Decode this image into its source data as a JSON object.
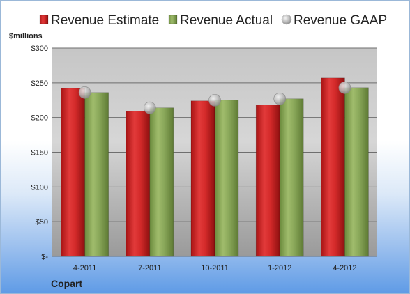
{
  "chart_data": {
    "type": "bar",
    "company": "Copart",
    "unit_label": "$millions",
    "categories": [
      "4-2011",
      "7-2011",
      "10-2011",
      "1-2012",
      "4-2012"
    ],
    "series": [
      {
        "name": "Revenue Estimate",
        "kind": "bar",
        "color": "#d42a2a",
        "values": [
          242,
          209,
          224,
          218,
          257
        ]
      },
      {
        "name": "Revenue Actual",
        "kind": "bar",
        "color": "#8aa85a",
        "values": [
          236,
          214,
          225,
          227,
          243
        ]
      },
      {
        "name": "Revenue GAAP",
        "kind": "marker",
        "color": "#b8b8b8",
        "values": [
          236,
          214,
          225,
          227,
          243
        ]
      }
    ],
    "y_ticks": [
      {
        "value": 0,
        "label": "$-"
      },
      {
        "value": 50,
        "label": "$50"
      },
      {
        "value": 100,
        "label": "$100"
      },
      {
        "value": 150,
        "label": "$150"
      },
      {
        "value": 200,
        "label": "$200"
      },
      {
        "value": 250,
        "label": "$250"
      },
      {
        "value": 300,
        "label": "$300"
      }
    ],
    "ylim": [
      0,
      300
    ],
    "grid": true,
    "legend_position": "top"
  }
}
